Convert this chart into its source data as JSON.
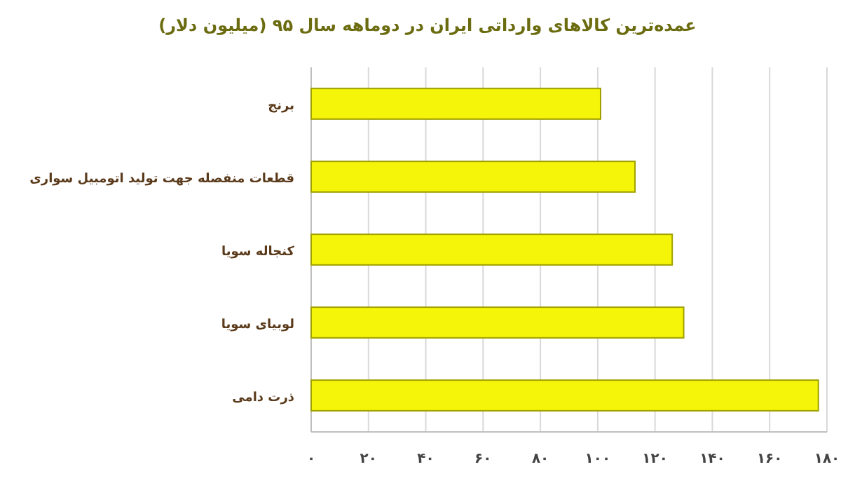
{
  "chart_data": {
    "type": "bar",
    "orientation": "horizontal",
    "title": "عمده‌ترین کالاهای وارداتی ایران در دوماهه سال ۹۵ (میلیون دلار)",
    "categories": [
      "برنج",
      "قطعات منفصله جهت تولید اتومبیل سواری",
      "کنجاله سویا",
      "لوبیای سویا",
      "ذرت دامی"
    ],
    "values": [
      101,
      113,
      126,
      130,
      177
    ],
    "color": "#f5f50a",
    "xlim": [
      0,
      180
    ],
    "xticks": [
      {
        "value": 0,
        "label": "۰"
      },
      {
        "value": 20,
        "label": "۲۰"
      },
      {
        "value": 40,
        "label": "۴۰"
      },
      {
        "value": 60,
        "label": "۶۰"
      },
      {
        "value": 80,
        "label": "۸۰"
      },
      {
        "value": 100,
        "label": "۱۰۰"
      },
      {
        "value": 120,
        "label": "۱۲۰"
      },
      {
        "value": 140,
        "label": "۱۴۰"
      },
      {
        "value": 160,
        "label": "۱۶۰"
      },
      {
        "value": 180,
        "label": "۱۸۰"
      }
    ],
    "grid": "x"
  }
}
